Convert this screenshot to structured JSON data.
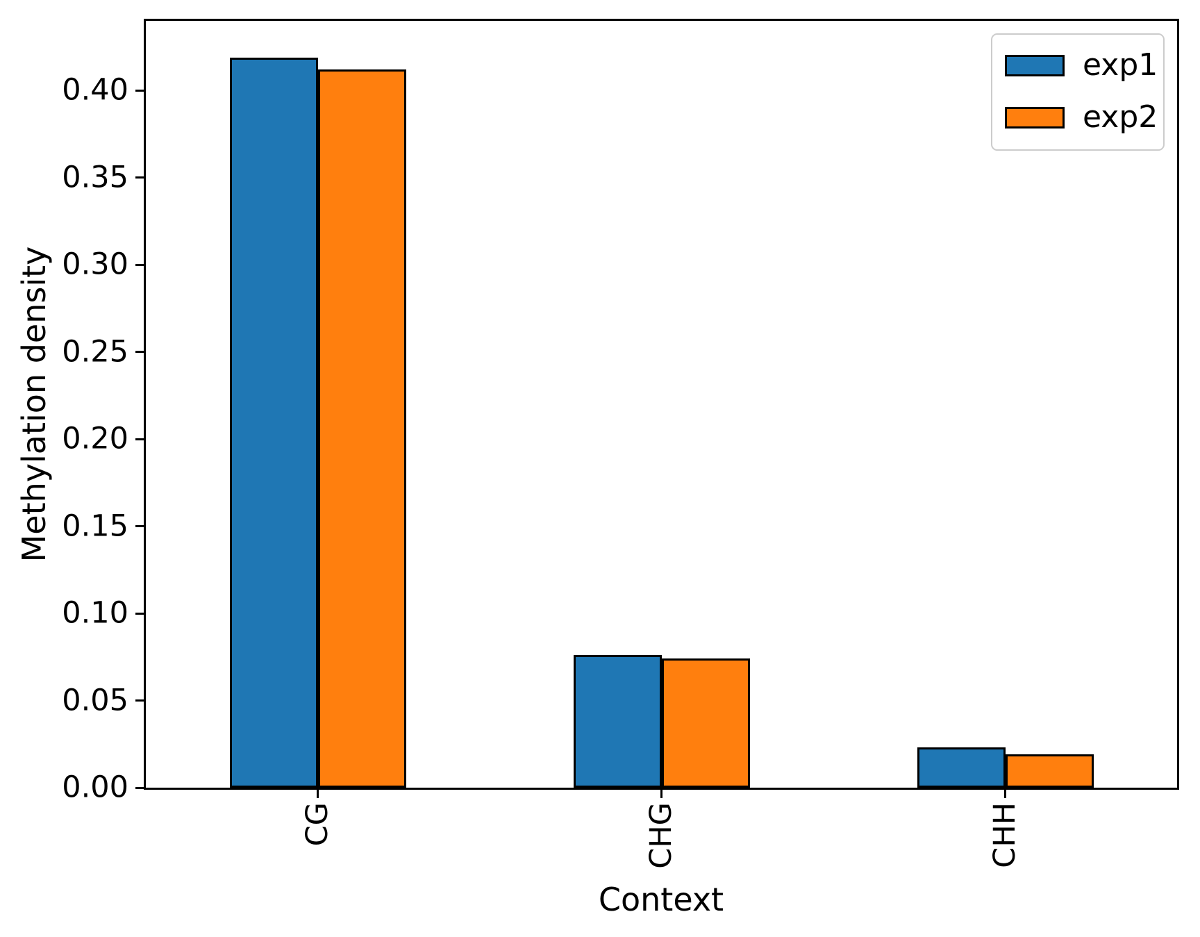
{
  "chart_data": {
    "type": "bar",
    "title": "",
    "xlabel": "Context",
    "ylabel": "Methylation density",
    "categories": [
      "CG",
      "CHG",
      "CHH"
    ],
    "series": [
      {
        "name": "exp1",
        "color": "#1f77b4",
        "values": [
          0.419,
          0.076,
          0.023
        ]
      },
      {
        "name": "exp2",
        "color": "#ff7f0e",
        "values": [
          0.412,
          0.074,
          0.019
        ]
      }
    ],
    "ylim": [
      0,
      0.44
    ],
    "yticks": [
      "0.00",
      "0.05",
      "0.10",
      "0.15",
      "0.20",
      "0.25",
      "0.30",
      "0.35",
      "0.40"
    ],
    "ytick_step": 0.05,
    "grid": false,
    "legend_position": "upper right",
    "bar_edge_color": "#000000",
    "background_color": "#ffffff",
    "x_tick_label_rotation_deg": 90
  }
}
